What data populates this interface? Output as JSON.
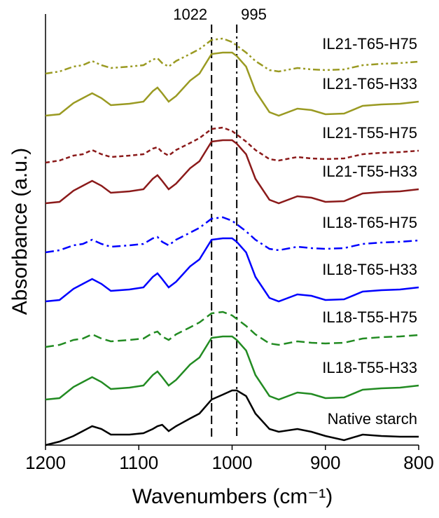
{
  "chart_data": {
    "type": "line",
    "x_label": "Wavenumbers (cm⁻¹)",
    "y_label": "Absorbance (a.u.)",
    "xlim": [
      1200,
      800
    ],
    "xticks": [
      1200,
      1100,
      1000,
      900,
      800
    ],
    "ylim": [
      0,
      6.15
    ],
    "x": [
      1200,
      1185,
      1170,
      1160,
      1150,
      1140,
      1130,
      1110,
      1095,
      1085,
      1080,
      1075,
      1068,
      1060,
      1045,
      1035,
      1022,
      1010,
      1000,
      995,
      985,
      975,
      960,
      950,
      930,
      915,
      900,
      880,
      860,
      840,
      820,
      800
    ],
    "vlines": [
      {
        "x": 1022,
        "dash": "dashed"
      },
      {
        "x": 995,
        "dash": "dashdot"
      }
    ],
    "series": [
      {
        "name": "IL21-T65-H75",
        "color": "#9a9a22",
        "dash": "dashdotdot",
        "values": [
          5.3,
          5.33,
          5.4,
          5.42,
          5.48,
          5.42,
          5.38,
          5.4,
          5.42,
          5.5,
          5.52,
          5.45,
          5.4,
          5.48,
          5.58,
          5.65,
          5.78,
          5.8,
          5.75,
          5.7,
          5.6,
          5.48,
          5.35,
          5.33,
          5.38,
          5.36,
          5.35,
          5.36,
          5.42,
          5.44,
          5.45,
          5.47
        ]
      },
      {
        "name": "IL21-T65-H33",
        "color": "#9a9a22",
        "dash": "solid",
        "values": [
          4.7,
          4.72,
          4.88,
          4.95,
          5.02,
          4.95,
          4.85,
          4.87,
          4.9,
          5.05,
          5.1,
          5.02,
          4.9,
          4.98,
          5.2,
          5.3,
          5.58,
          5.6,
          5.6,
          5.55,
          5.4,
          5.05,
          4.75,
          4.7,
          4.8,
          4.78,
          4.72,
          4.73,
          4.84,
          4.86,
          4.87,
          4.9
        ]
      },
      {
        "name": "IL21-T55-H75",
        "color": "#8b1a1a",
        "dash": "dotted",
        "values": [
          4.03,
          4.06,
          4.13,
          4.15,
          4.21,
          4.15,
          4.11,
          4.13,
          4.15,
          4.23,
          4.25,
          4.18,
          4.13,
          4.21,
          4.31,
          4.38,
          4.51,
          4.53,
          4.48,
          4.43,
          4.33,
          4.21,
          4.08,
          4.06,
          4.11,
          4.09,
          4.08,
          4.09,
          4.15,
          4.17,
          4.18,
          4.2
        ]
      },
      {
        "name": "IL21-T55-H33",
        "color": "#8b1a1a",
        "dash": "solid",
        "values": [
          3.45,
          3.47,
          3.63,
          3.7,
          3.77,
          3.7,
          3.6,
          3.62,
          3.65,
          3.8,
          3.85,
          3.77,
          3.65,
          3.73,
          3.95,
          4.05,
          4.33,
          4.35,
          4.35,
          4.3,
          4.15,
          3.8,
          3.5,
          3.45,
          3.55,
          3.53,
          3.47,
          3.48,
          3.59,
          3.61,
          3.62,
          3.65
        ]
      },
      {
        "name": "IL18-T65-H75",
        "color": "#0000ff",
        "dash": "dashdot",
        "values": [
          2.75,
          2.78,
          2.85,
          2.87,
          2.93,
          2.87,
          2.83,
          2.85,
          2.87,
          2.95,
          2.97,
          2.9,
          2.85,
          2.93,
          3.03,
          3.1,
          3.23,
          3.25,
          3.2,
          3.15,
          3.05,
          2.93,
          2.8,
          2.78,
          2.83,
          2.81,
          2.8,
          2.81,
          2.87,
          2.89,
          2.9,
          2.92
        ]
      },
      {
        "name": "IL18-T65-H33",
        "color": "#0000ff",
        "dash": "solid",
        "values": [
          2.05,
          2.07,
          2.23,
          2.3,
          2.37,
          2.3,
          2.2,
          2.22,
          2.25,
          2.4,
          2.45,
          2.37,
          2.25,
          2.33,
          2.55,
          2.65,
          2.93,
          2.95,
          2.95,
          2.9,
          2.75,
          2.4,
          2.1,
          2.05,
          2.15,
          2.13,
          2.07,
          2.08,
          2.19,
          2.21,
          2.22,
          2.25
        ]
      },
      {
        "name": "IL18-T55-H75",
        "color": "#228b22",
        "dash": "dashed",
        "values": [
          1.4,
          1.43,
          1.5,
          1.52,
          1.58,
          1.52,
          1.48,
          1.5,
          1.52,
          1.6,
          1.62,
          1.55,
          1.5,
          1.58,
          1.68,
          1.75,
          1.88,
          1.9,
          1.85,
          1.8,
          1.7,
          1.58,
          1.45,
          1.43,
          1.48,
          1.46,
          1.45,
          1.46,
          1.52,
          1.54,
          1.55,
          1.57
        ]
      },
      {
        "name": "IL18-T55-H33",
        "color": "#228b22",
        "dash": "solid",
        "values": [
          0.65,
          0.67,
          0.83,
          0.9,
          0.97,
          0.9,
          0.8,
          0.82,
          0.85,
          1.0,
          1.05,
          0.97,
          0.85,
          0.93,
          1.15,
          1.25,
          1.53,
          1.55,
          1.55,
          1.5,
          1.35,
          1.0,
          0.7,
          0.65,
          0.75,
          0.73,
          0.67,
          0.68,
          0.79,
          0.81,
          0.82,
          0.85
        ]
      },
      {
        "name": "Native starch",
        "color": "#000000",
        "dash": "solid",
        "values": [
          0,
          0.05,
          0.13,
          0.2,
          0.27,
          0.23,
          0.15,
          0.15,
          0.17,
          0.23,
          0.27,
          0.29,
          0.2,
          0.27,
          0.38,
          0.45,
          0.65,
          0.72,
          0.78,
          0.78,
          0.7,
          0.45,
          0.23,
          0.19,
          0.23,
          0.19,
          0.13,
          0.07,
          0.15,
          0.13,
          0.12,
          0.12
        ]
      }
    ]
  }
}
